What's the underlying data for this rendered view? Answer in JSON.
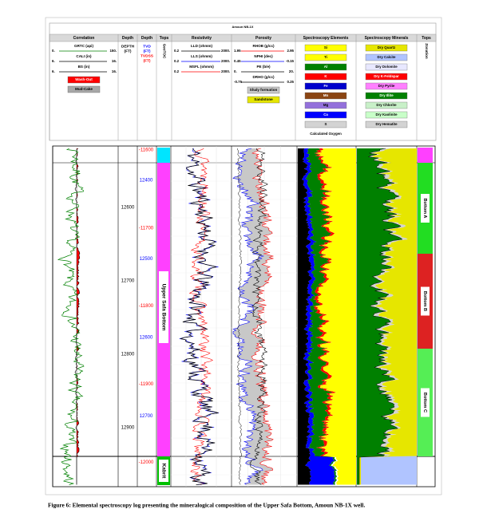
{
  "header": {
    "title": "Amoun NB-1X"
  },
  "tracks": [
    {
      "title": "Correlation",
      "curves": [
        {
          "name": "GRTC (api)",
          "left": "0.",
          "right": "150.",
          "color": "#008000"
        },
        {
          "name": "CALI (in)",
          "left": "6.",
          "right": "16.",
          "color": "#000000"
        },
        {
          "name": "BS (in)",
          "left": "6.",
          "right": "16.",
          "color": "#000000"
        }
      ],
      "fills": [
        {
          "name": "Wash-Out",
          "color": "#ff0000"
        },
        {
          "name": "Mud-Cake",
          "color": "#a8a8a8"
        }
      ]
    },
    {
      "title": "Depth",
      "lines": [
        {
          "text": "DEPTH",
          "color": "#000000"
        },
        {
          "text": "(FT)",
          "color": "#000000"
        }
      ]
    },
    {
      "title": "Depth",
      "lines": [
        {
          "text": "TVD",
          "color": "#0000ff"
        },
        {
          "text": "(FT)",
          "color": "#0000ff"
        },
        {
          "text": "TVDSS",
          "color": "#ff0000"
        },
        {
          "text": "(FT)",
          "color": "#ff0000"
        }
      ]
    },
    {
      "title": "Tops",
      "vertical": "GeoTOC"
    },
    {
      "title": "Resistivity",
      "curves": [
        {
          "name": "LLD (ohmm)",
          "left": "0.2",
          "right": "2000.",
          "color": "#000000"
        },
        {
          "name": "LLS (ohmm)",
          "left": "0.2",
          "right": "2000.",
          "color": "#0000ff"
        },
        {
          "name": "MSFL (ohmm)",
          "left": "0.2",
          "right": "2000.",
          "color": "#ff0000"
        }
      ]
    },
    {
      "title": "Porosity",
      "curves": [
        {
          "name": "RHOB (g/cc)",
          "left": "1.95",
          "right": "2.95",
          "color": "#ff0000"
        },
        {
          "name": "NPHI (dec)",
          "left": "0.45",
          "right": "-0.15",
          "color": "#0000ff"
        },
        {
          "name": "PE (b/e)",
          "left": "0.",
          "right": "20.",
          "color": "#000000"
        },
        {
          "name": "DRHO (g/cc)",
          "left": "-0.75",
          "right": "0.25",
          "color": "#000000"
        }
      ],
      "fills": [
        {
          "name": "Shaly formation",
          "color": "#c8c8c8"
        },
        {
          "name": "Sandstone",
          "color": "#e6e600"
        }
      ]
    },
    {
      "title": "Spectroscopy Elements",
      "boxes": [
        {
          "name": "Si",
          "color": "#ffff00"
        },
        {
          "name": "Ti",
          "color": "#ffff00"
        },
        {
          "name": "Al",
          "color": "#008000"
        },
        {
          "name": "K",
          "color": "#ff0000"
        },
        {
          "name": "Fe",
          "color": "#0000cc"
        },
        {
          "name": "Mn",
          "color": "#8b4513"
        },
        {
          "name": "Mg",
          "color": "#9370db"
        },
        {
          "name": "Ca",
          "color": "#0000ff"
        },
        {
          "name": "S",
          "color": "#d3d3d3"
        }
      ],
      "note": "Calculated Oxygen"
    },
    {
      "title": "Spectroscopy Minerals",
      "boxes": [
        {
          "name": "Dry Quartz",
          "color": "#e6e600"
        },
        {
          "name": "Dry Calcite",
          "color": "#b0c4ff"
        },
        {
          "name": "Dry Dolomite",
          "color": "#e8e8ff"
        },
        {
          "name": "Dry K-Feldspar",
          "color": "#ff0000"
        },
        {
          "name": "Dry Pyrite",
          "color": "#ff80ff"
        },
        {
          "name": "Dry Illite",
          "color": "#008000"
        },
        {
          "name": "Dry Chlorite",
          "color": "#c8f0c8"
        },
        {
          "name": "Dry Kaolinite",
          "color": "#c8ffc8"
        },
        {
          "name": "Dry Hematite",
          "color": "#d3d3d3"
        }
      ]
    },
    {
      "title": "Tops",
      "vertical": "Zonation"
    }
  ],
  "log": {
    "md": [
      "12600",
      "12700",
      "12800",
      "12900"
    ],
    "tvd": [
      "12400",
      "12500",
      "12600",
      "12700"
    ],
    "tvdss": [
      "-11600",
      "-11700",
      "-11800",
      "-11900",
      "-12000"
    ],
    "tops": [
      "Upper Safa Bottom",
      "Kabrit"
    ],
    "zones": [
      "Bottom A",
      "Bottom B",
      "Bottom C"
    ]
  },
  "caption": "Figure 6: Elemental spectroscopy log presenting the mineralogical composition of the Upper Safa Bottom, Amoun NB-1X well."
}
